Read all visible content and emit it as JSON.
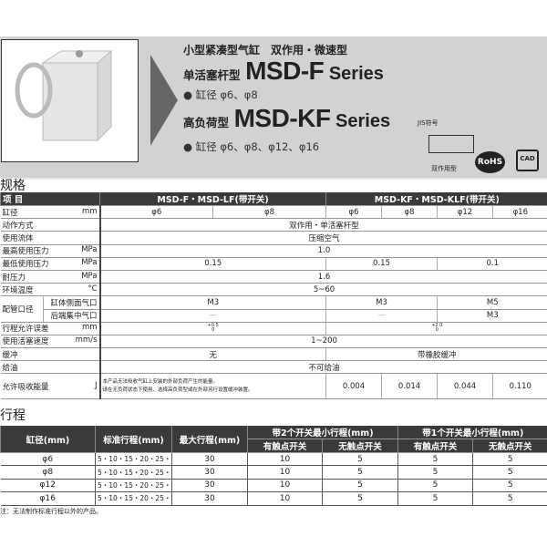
{
  "header": {
    "subtitle": "小型紧凑型气缸　双作用・微速型",
    "series1": {
      "prefix": "单活塞杆型",
      "model": "MSD-F",
      "suffix": "Series",
      "bore": "● 缸径 φ6、φ8"
    },
    "series2": {
      "prefix": "高负荷型",
      "model": "MSD-KF",
      "suffix": "Series",
      "bore": "● 缸径 φ6、φ8、φ12、φ16"
    },
    "jis_label": "JIS符号",
    "symbol_label": "双作用型",
    "rohs": "RoHS",
    "cad": "CAD"
  },
  "spec": {
    "title": "规格",
    "head": [
      "项 目",
      "MSD-F・MSD-LF(带开关)",
      "MSD-KF・MSD-KLF(带开关)"
    ],
    "bore": {
      "label": "缸径",
      "unit": "mm",
      "values": [
        "φ6",
        "φ8",
        "φ6",
        "φ8",
        "φ12",
        "φ16"
      ]
    },
    "action": {
      "label": "动作方式",
      "value": "双作用・单活塞杆型"
    },
    "fluid": {
      "label": "使用流体",
      "value": "压缩空气"
    },
    "maxp": {
      "label": "最高使用压力",
      "unit": "MPa",
      "value": "1.0"
    },
    "minp": {
      "label": "最低使用压力",
      "unit": "MPa",
      "values": [
        "0.15",
        "0.15",
        "0.1"
      ]
    },
    "proof": {
      "label": "耐压力",
      "unit": "MPa",
      "value": "1.6"
    },
    "temp": {
      "label": "环境温度",
      "unit": "°C",
      "value": "5~60"
    },
    "port": {
      "label": "配管口径",
      "side": "缸体侧面气口",
      "side_values": [
        "M3",
        "M3",
        "M5"
      ],
      "rear": "后端集中气口",
      "rear_values": [
        "—",
        "—",
        "M3"
      ]
    },
    "tol": {
      "label": "行程允许误差",
      "unit": "mm",
      "values": [
        {
          "up": "+0.5",
          "down": "0"
        },
        {
          "up": "+2.0",
          "down": "0"
        }
      ]
    },
    "speed": {
      "label": "使用活塞速度",
      "unit": "mm/s",
      "value": "1~200"
    },
    "cushion": {
      "label": "缓冲",
      "values": [
        "无",
        "带橡胶缓冲"
      ]
    },
    "lube": {
      "label": "给油",
      "value": "不可给油"
    },
    "energy": {
      "label": "允许吸收能量",
      "unit": "J",
      "note1": "本产品无法吸收气缸上安装的外部负荷产生的能量。",
      "note2": "请在无负荷状态下使用、选择高负荷型或在外部另行设置缓冲装置。",
      "values": [
        "0.004",
        "0.014",
        "0.044",
        "0.110"
      ]
    }
  },
  "stroke": {
    "title": "行程",
    "head": [
      "缸径(mm)",
      "标准行程(mm)",
      "最大行程(mm)",
      "带2个开关最小行程(mm)",
      "带1个开关最小行程(mm)"
    ],
    "sub": [
      "有触点开关",
      "无触点开关",
      "有触点开关",
      "无触点开关"
    ],
    "rows": [
      [
        "φ6",
        "5・10・15・20・25・30",
        "30",
        "10",
        "5",
        "5",
        "5"
      ],
      [
        "φ8",
        "5・10・15・20・25・30",
        "30",
        "10",
        "5",
        "5",
        "5"
      ],
      [
        "φ12",
        "5・10・15・20・25・30",
        "30",
        "10",
        "5",
        "5",
        "5"
      ],
      [
        "φ16",
        "5・10・15・20・25・30",
        "30",
        "10",
        "5",
        "5",
        "5"
      ]
    ],
    "note": "注：无法制作标准行程以外的产品。"
  }
}
